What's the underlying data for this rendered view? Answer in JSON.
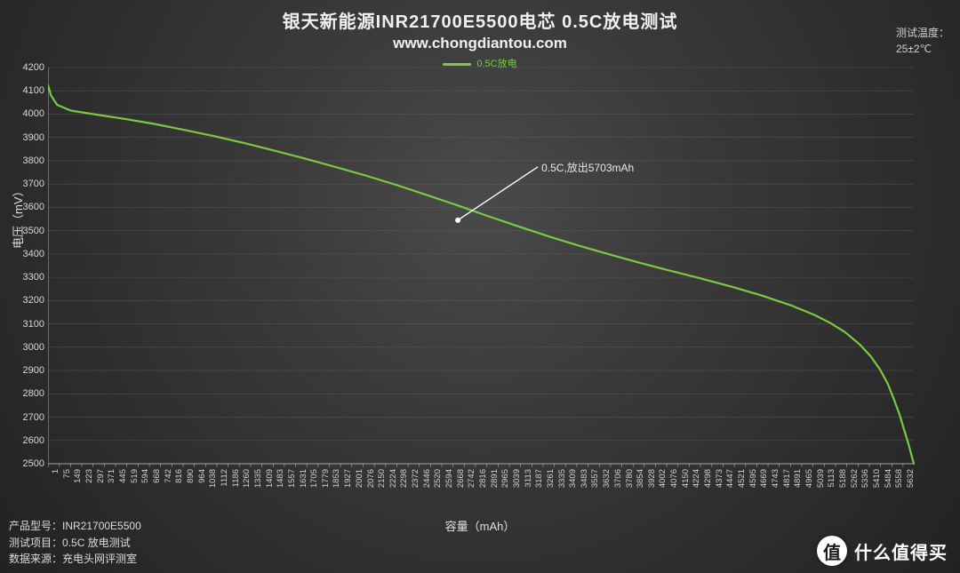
{
  "title": "银天新能源INR21700E5500电芯  0.5C放电测试",
  "subtitle": "www.chongdiantou.com",
  "legend": {
    "label": "0.5C放电",
    "color": "#7ac943"
  },
  "temperature": {
    "label": "测试温度：",
    "value": "25±2℃"
  },
  "axes": {
    "ylabel": "电压（mV）",
    "xlabel": "容量（mAh）",
    "ylim": [
      2500,
      4200
    ],
    "ytick_step": 100,
    "xlim": [
      0,
      5703
    ],
    "x_ticks": [
      1,
      75,
      149,
      223,
      297,
      371,
      445,
      519,
      594,
      668,
      742,
      816,
      890,
      964,
      1038,
      1112,
      1186,
      1260,
      1335,
      1409,
      1483,
      1557,
      1631,
      1705,
      1779,
      1853,
      1927,
      2001,
      2076,
      2150,
      2224,
      2298,
      2372,
      2446,
      2520,
      2594,
      2668,
      2742,
      2816,
      2891,
      2965,
      3039,
      3113,
      3187,
      3261,
      3335,
      3409,
      3483,
      3557,
      3632,
      3706,
      3780,
      3854,
      3928,
      4002,
      4076,
      4150,
      4224,
      4298,
      4373,
      4447,
      4521,
      4595,
      4669,
      4743,
      4817,
      4891,
      4965,
      5039,
      5113,
      5188,
      5262,
      5336,
      5410,
      5484,
      5558,
      5632
    ],
    "grid_color": "#6a6a6a",
    "axis_color": "#a8a8a8",
    "tick_fontsize": 11,
    "label_fontsize": 13
  },
  "annotation": {
    "text": "0.5C,放出5703mAh",
    "x_mah": 2700,
    "y_mv": 3545
  },
  "chart": {
    "type": "line",
    "series_color": "#7ac943",
    "line_width": 2.2,
    "points": [
      [
        0,
        4125
      ],
      [
        20,
        4080
      ],
      [
        60,
        4040
      ],
      [
        150,
        4015
      ],
      [
        300,
        4000
      ],
      [
        500,
        3980
      ],
      [
        700,
        3958
      ],
      [
        900,
        3932
      ],
      [
        1100,
        3905
      ],
      [
        1300,
        3875
      ],
      [
        1500,
        3842
      ],
      [
        1700,
        3808
      ],
      [
        1900,
        3772
      ],
      [
        2100,
        3735
      ],
      [
        2300,
        3695
      ],
      [
        2500,
        3652
      ],
      [
        2700,
        3608
      ],
      [
        2900,
        3562
      ],
      [
        3100,
        3518
      ],
      [
        3300,
        3475
      ],
      [
        3500,
        3435
      ],
      [
        3700,
        3398
      ],
      [
        3900,
        3362
      ],
      [
        4100,
        3328
      ],
      [
        4300,
        3295
      ],
      [
        4500,
        3260
      ],
      [
        4700,
        3222
      ],
      [
        4900,
        3178
      ],
      [
        5050,
        3138
      ],
      [
        5150,
        3105
      ],
      [
        5250,
        3065
      ],
      [
        5350,
        3010
      ],
      [
        5420,
        2960
      ],
      [
        5480,
        2905
      ],
      [
        5530,
        2845
      ],
      [
        5570,
        2780
      ],
      [
        5610,
        2710
      ],
      [
        5640,
        2645
      ],
      [
        5670,
        2580
      ],
      [
        5695,
        2520
      ],
      [
        5703,
        2500
      ]
    ]
  },
  "meta": {
    "rows": [
      {
        "k": "产品型号：",
        "v": "INR21700E5500"
      },
      {
        "k": "测试项目：",
        "v": "0.5C 放电测试"
      },
      {
        "k": "数据来源：",
        "v": "充电头网评测室"
      }
    ]
  },
  "watermark": {
    "badge": "值",
    "text": "什么值得买"
  },
  "colors": {
    "background_inner": "#4a4a4a",
    "background_outer": "#222222",
    "text": "#e8e8e8"
  }
}
